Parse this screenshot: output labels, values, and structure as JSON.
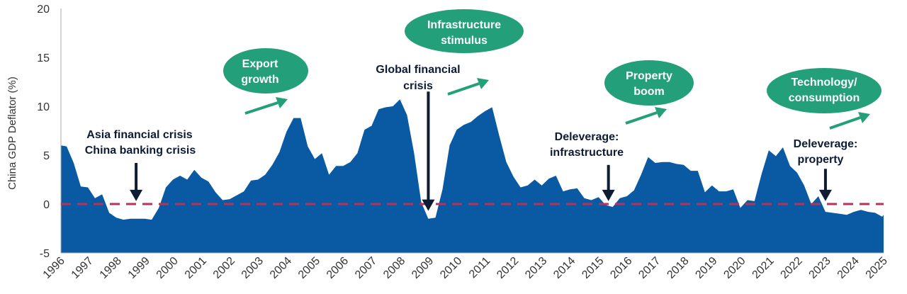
{
  "chart_data": {
    "type": "area",
    "ylabel": "China GDP Deflator (%)",
    "ylim": [
      -5,
      20
    ],
    "yticks": [
      -5,
      0,
      5,
      10,
      15,
      20
    ],
    "xlim": [
      1996,
      2025
    ],
    "xticks": [
      "1996",
      "1997",
      "1998",
      "1999",
      "2000",
      "2001",
      "2002",
      "2003",
      "2004",
      "2005",
      "2006",
      "2007",
      "2008",
      "2009",
      "2010",
      "2011",
      "2012",
      "2013",
      "2014",
      "2015",
      "2016",
      "2017",
      "2018",
      "2019",
      "2020",
      "2021",
      "2022",
      "2023",
      "2024",
      "2025"
    ],
    "reference_line": {
      "value": 0,
      "color": "#b5325a"
    },
    "series": [
      {
        "name": "China GDP Deflator",
        "color": "#0a5aa3",
        "points": [
          [
            1996.0,
            6.0
          ],
          [
            1996.2,
            5.9
          ],
          [
            1996.45,
            4.2
          ],
          [
            1996.7,
            1.8
          ],
          [
            1996.95,
            1.7
          ],
          [
            1997.2,
            0.6
          ],
          [
            1997.45,
            1.0
          ],
          [
            1997.7,
            -0.9
          ],
          [
            1997.95,
            -1.4
          ],
          [
            1998.2,
            -1.6
          ],
          [
            1998.45,
            -1.5
          ],
          [
            1998.7,
            -1.5
          ],
          [
            1998.95,
            -1.5
          ],
          [
            1999.2,
            -1.6
          ],
          [
            1999.45,
            -0.4
          ],
          [
            1999.7,
            1.7
          ],
          [
            1999.95,
            2.5
          ],
          [
            2000.2,
            2.9
          ],
          [
            2000.45,
            2.5
          ],
          [
            2000.7,
            3.5
          ],
          [
            2000.95,
            2.7
          ],
          [
            2001.2,
            2.3
          ],
          [
            2001.45,
            1.2
          ],
          [
            2001.7,
            0.4
          ],
          [
            2001.95,
            0.5
          ],
          [
            2002.2,
            0.9
          ],
          [
            2002.45,
            1.3
          ],
          [
            2002.7,
            2.4
          ],
          [
            2002.95,
            2.5
          ],
          [
            2003.2,
            3.0
          ],
          [
            2003.45,
            4.0
          ],
          [
            2003.7,
            5.3
          ],
          [
            2003.95,
            7.4
          ],
          [
            2004.2,
            8.8
          ],
          [
            2004.45,
            8.8
          ],
          [
            2004.7,
            5.9
          ],
          [
            2004.95,
            4.6
          ],
          [
            2005.2,
            5.2
          ],
          [
            2005.45,
            3.0
          ],
          [
            2005.7,
            3.9
          ],
          [
            2005.95,
            3.9
          ],
          [
            2006.2,
            4.3
          ],
          [
            2006.45,
            5.2
          ],
          [
            2006.7,
            7.6
          ],
          [
            2006.95,
            8.0
          ],
          [
            2007.2,
            9.7
          ],
          [
            2007.45,
            9.9
          ],
          [
            2007.7,
            10.0
          ],
          [
            2007.95,
            10.7
          ],
          [
            2008.2,
            9.1
          ],
          [
            2008.45,
            5.2
          ],
          [
            2008.7,
            0.2
          ],
          [
            2008.95,
            -1.5
          ],
          [
            2009.2,
            -1.4
          ],
          [
            2009.45,
            1.5
          ],
          [
            2009.7,
            6.0
          ],
          [
            2009.95,
            7.6
          ],
          [
            2010.2,
            8.1
          ],
          [
            2010.45,
            8.4
          ],
          [
            2010.7,
            9.0
          ],
          [
            2010.95,
            9.5
          ],
          [
            2011.2,
            9.9
          ],
          [
            2011.45,
            7.0
          ],
          [
            2011.7,
            4.3
          ],
          [
            2011.95,
            2.8
          ],
          [
            2012.2,
            1.7
          ],
          [
            2012.45,
            1.9
          ],
          [
            2012.7,
            2.5
          ],
          [
            2012.95,
            1.9
          ],
          [
            2013.2,
            2.6
          ],
          [
            2013.45,
            2.9
          ],
          [
            2013.7,
            1.3
          ],
          [
            2013.95,
            1.5
          ],
          [
            2014.2,
            1.6
          ],
          [
            2014.45,
            0.6
          ],
          [
            2014.7,
            0.4
          ],
          [
            2014.95,
            0.7
          ],
          [
            2015.2,
            -0.1
          ],
          [
            2015.45,
            -0.3
          ],
          [
            2015.7,
            0.6
          ],
          [
            2015.95,
            0.8
          ],
          [
            2016.2,
            1.4
          ],
          [
            2016.45,
            3.0
          ],
          [
            2016.7,
            4.8
          ],
          [
            2016.95,
            4.2
          ],
          [
            2017.2,
            4.3
          ],
          [
            2017.45,
            4.3
          ],
          [
            2017.7,
            4.1
          ],
          [
            2017.95,
            4.0
          ],
          [
            2018.2,
            3.4
          ],
          [
            2018.45,
            3.4
          ],
          [
            2018.7,
            1.2
          ],
          [
            2018.95,
            1.9
          ],
          [
            2019.2,
            1.3
          ],
          [
            2019.45,
            1.3
          ],
          [
            2019.7,
            1.5
          ],
          [
            2019.95,
            -0.4
          ],
          [
            2020.2,
            0.4
          ],
          [
            2020.45,
            0.3
          ],
          [
            2020.7,
            3.1
          ],
          [
            2020.95,
            5.5
          ],
          [
            2021.2,
            4.9
          ],
          [
            2021.45,
            5.8
          ],
          [
            2021.7,
            3.9
          ],
          [
            2021.95,
            3.2
          ],
          [
            2022.2,
            1.9
          ],
          [
            2022.45,
            0.0
          ],
          [
            2022.7,
            0.8
          ],
          [
            2022.95,
            -0.8
          ],
          [
            2023.2,
            -0.9
          ],
          [
            2023.45,
            -1.0
          ],
          [
            2023.7,
            -1.1
          ],
          [
            2023.95,
            -0.8
          ],
          [
            2024.2,
            -0.6
          ],
          [
            2024.45,
            -0.8
          ],
          [
            2024.7,
            -0.9
          ],
          [
            2024.95,
            -1.3
          ],
          [
            2025.0,
            -1.1
          ]
        ]
      }
    ],
    "annotations": [
      {
        "lines": [
          "Asia financial crisis",
          "China banking crisis"
        ],
        "arrow_year": 1998.65,
        "arrow_from": 4.2,
        "arrow_to": 0.3
      },
      {
        "lines": [
          "Global financial",
          "crisis"
        ],
        "arrow_year": 2008.95,
        "arrow_from": 11.5,
        "arrow_to": -0.7
      },
      {
        "lines": [
          "Deleverage:",
          "infrastructure"
        ],
        "arrow_year": 2015.3,
        "arrow_from": 4.0,
        "arrow_to": 0.3
      },
      {
        "lines": [
          "Deleverage:",
          "property"
        ],
        "arrow_year": 2022.95,
        "arrow_from": 3.6,
        "arrow_to": 0.3
      }
    ],
    "bubbles": [
      {
        "lines": [
          "Export",
          "growth"
        ],
        "color": "#23a079"
      },
      {
        "lines": [
          "Infrastructure",
          "stimulus"
        ],
        "color": "#23a079"
      },
      {
        "lines": [
          "Property",
          "boom"
        ],
        "color": "#23a079"
      },
      {
        "lines": [
          "Technology/",
          "consumption"
        ],
        "color": "#23a079"
      }
    ]
  }
}
